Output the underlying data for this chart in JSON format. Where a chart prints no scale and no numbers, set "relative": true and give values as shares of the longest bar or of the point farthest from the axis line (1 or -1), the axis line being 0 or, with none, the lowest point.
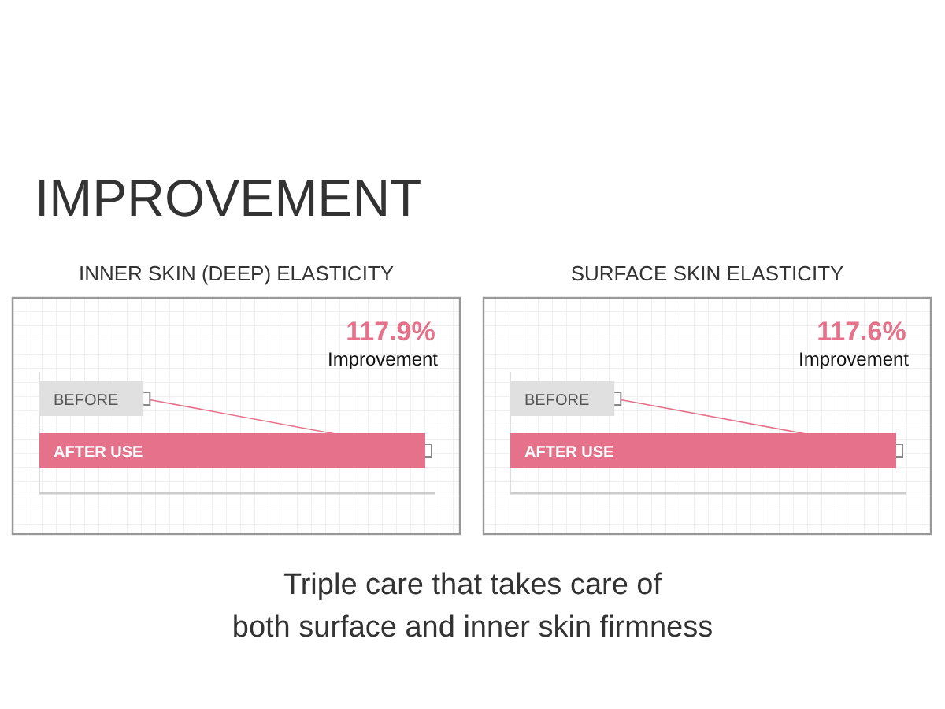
{
  "chart_data": [
    {
      "type": "other",
      "title": "IMPROVEMENT",
      "annotations": [
        "Triple care that takes care of\nboth surface and inner skin firmness"
      ]
    },
    {
      "type": "bar",
      "title": "INNER SKIN (DEEP) ELASTICITY",
      "orientation": "horizontal",
      "relative": true,
      "categories": [
        "BEFORE",
        "AFTER USE"
      ],
      "values": [
        0.27,
        1
      ],
      "colors": [
        "#e0e0e0",
        "#e5728a"
      ],
      "annotations": [
        "117.9%",
        "Improvement"
      ]
    },
    {
      "type": "bar",
      "title": "SURFACE SKIN ELASTICITY",
      "orientation": "horizontal",
      "relative": true,
      "categories": [
        "BEFORE",
        "AFTER USE"
      ],
      "values": [
        0.27,
        1
      ],
      "colors": [
        "#e0e0e0",
        "#e5728a"
      ],
      "annotations": [
        "117.6%",
        "Improvement"
      ]
    }
  ]
}
